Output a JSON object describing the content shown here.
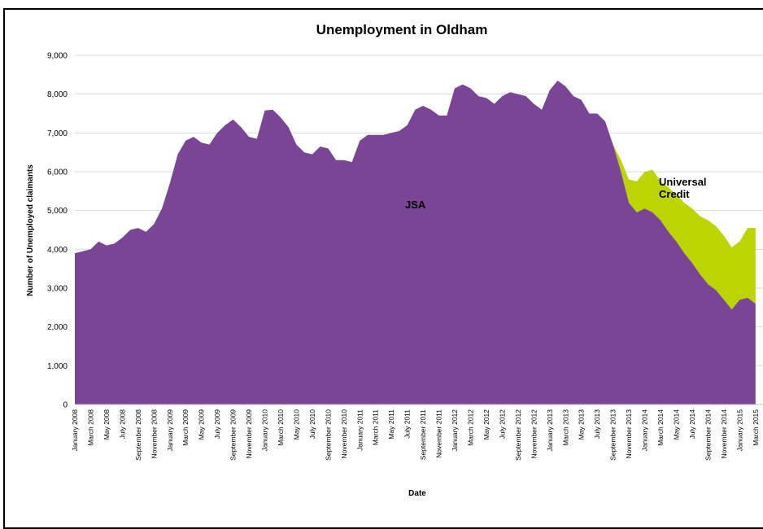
{
  "chart_data": {
    "type": "area",
    "stacked": true,
    "title": "Unemployment in Oldham",
    "xlabel": "Date",
    "ylabel": "Number of Unemployed claimants",
    "ylim": [
      0,
      9000
    ],
    "yticks": [
      "0",
      "1,000",
      "2,000",
      "3,000",
      "4,000",
      "5,000",
      "6,000",
      "7,000",
      "8,000",
      "9,000"
    ],
    "grid": "horizontal",
    "x_labels": [
      "January 2008",
      "March 2008",
      "May 2008",
      "July 2008",
      "September 2008",
      "November 2008",
      "January 2009",
      "March 2009",
      "May 2009",
      "July 2009",
      "September 2009",
      "November 2009",
      "January 2010",
      "March 2010",
      "May 2010",
      "July 2010",
      "September 2010",
      "November 2010",
      "January 2011",
      "March 2011",
      "May 2011",
      "July 2011",
      "September 2011",
      "November 2011",
      "January 2012",
      "March 2012",
      "May 2012",
      "July 2012",
      "September 2012",
      "November 2012",
      "January 2013",
      "March 2013",
      "May 2013",
      "July 2013",
      "September 2013",
      "November 2013",
      "January 2014",
      "March 2014",
      "May 2014",
      "July 2014",
      "September 2014",
      "November 2014",
      "January 2015",
      "March 2015"
    ],
    "series": [
      {
        "name": "JSA",
        "color": "#7b4596",
        "values": [
          3900,
          3950,
          4000,
          4200,
          4100,
          4150,
          4300,
          4500,
          4550,
          4450,
          4650,
          5050,
          5700,
          6450,
          6800,
          6900,
          6750,
          6700,
          7000,
          7200,
          7350,
          7150,
          6900,
          6850,
          7580,
          7600,
          7400,
          7150,
          6700,
          6500,
          6450,
          6650,
          6600,
          6300,
          6300,
          6250,
          6800,
          6950,
          6950,
          6950,
          7000,
          7050,
          7200,
          7600,
          7700,
          7600,
          7450,
          7450,
          8150,
          8250,
          8150,
          7950,
          7900,
          7750,
          7950,
          8050,
          8000,
          7950,
          7750,
          7600,
          8100,
          8350,
          8200,
          7950,
          7850,
          7500,
          7500,
          7300,
          6700,
          6000,
          5200,
          4950,
          5050,
          4950,
          4750,
          4450,
          4200,
          3900,
          3650,
          3350,
          3100,
          2950,
          2700,
          2450,
          2700,
          2750,
          2600
        ]
      },
      {
        "name": "Universal Credit",
        "label_lines": [
          "Universal",
          "Credit"
        ],
        "color": "#bcd400",
        "values": [
          0,
          0,
          0,
          0,
          0,
          0,
          0,
          0,
          0,
          0,
          0,
          0,
          0,
          0,
          0,
          0,
          0,
          0,
          0,
          0,
          0,
          0,
          0,
          0,
          0,
          0,
          0,
          0,
          0,
          0,
          0,
          0,
          0,
          0,
          0,
          0,
          0,
          0,
          0,
          0,
          0,
          0,
          0,
          0,
          0,
          0,
          0,
          0,
          0,
          0,
          0,
          0,
          0,
          0,
          0,
          0,
          0,
          0,
          0,
          0,
          0,
          0,
          0,
          0,
          0,
          0,
          0,
          0,
          0,
          300,
          600,
          800,
          950,
          1100,
          1000,
          1150,
          1200,
          1300,
          1400,
          1500,
          1650,
          1650,
          1650,
          1600,
          1500,
          1800,
          1950
        ]
      }
    ]
  }
}
